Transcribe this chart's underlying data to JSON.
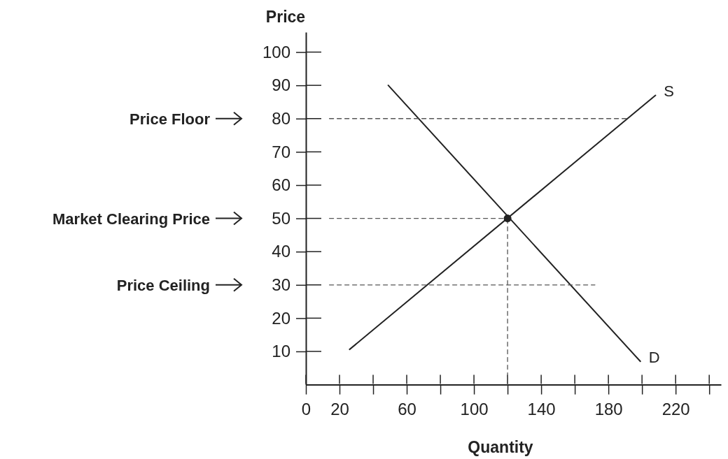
{
  "chart_data": {
    "type": "line",
    "xlabel": "Quantity",
    "ylabel": "Price",
    "xlim": [
      0,
      247
    ],
    "ylim": [
      0,
      106
    ],
    "xticks": [
      0,
      20,
      {
        "value": 40,
        "label": null
      },
      60,
      {
        "value": 80,
        "label": null
      },
      100,
      {
        "value": 120,
        "label": null
      },
      140,
      {
        "value": 160,
        "label": null
      },
      180,
      {
        "value": 200,
        "label": null
      },
      220,
      {
        "value": 240,
        "label": null
      }
    ],
    "yticks": [
      10,
      20,
      30,
      40,
      50,
      60,
      70,
      80,
      90,
      100
    ],
    "grid": false,
    "series": [
      {
        "name": "S",
        "color": "#222222",
        "x": [
          26,
          208
        ],
        "values": [
          10.6,
          87
        ]
      },
      {
        "name": "D",
        "color": "#222222",
        "x": [
          49,
          199
        ],
        "values": [
          90,
          7
        ]
      },
      {
        "color": "#555555",
        "x": [
          14,
          191
        ],
        "values": [
          80,
          80
        ],
        "line_style": "dashed"
      },
      {
        "color": "#555555",
        "x": [
          14,
          120
        ],
        "values": [
          50,
          50
        ],
        "line_style": "dashed"
      },
      {
        "color": "#555555",
        "x": [
          14,
          172
        ],
        "values": [
          30,
          30
        ],
        "line_style": "dashed"
      },
      {
        "color": "#555555",
        "x": [
          120,
          120
        ],
        "values": [
          0,
          50
        ],
        "line_style": "dashed"
      },
      {
        "type": "scatter",
        "color": "#222222",
        "x": [
          120
        ],
        "values": [
          50
        ],
        "marker": "circle"
      }
    ],
    "annotations": [
      "Price Floor",
      "Market Clearing Price",
      "Price Ceiling"
    ]
  }
}
